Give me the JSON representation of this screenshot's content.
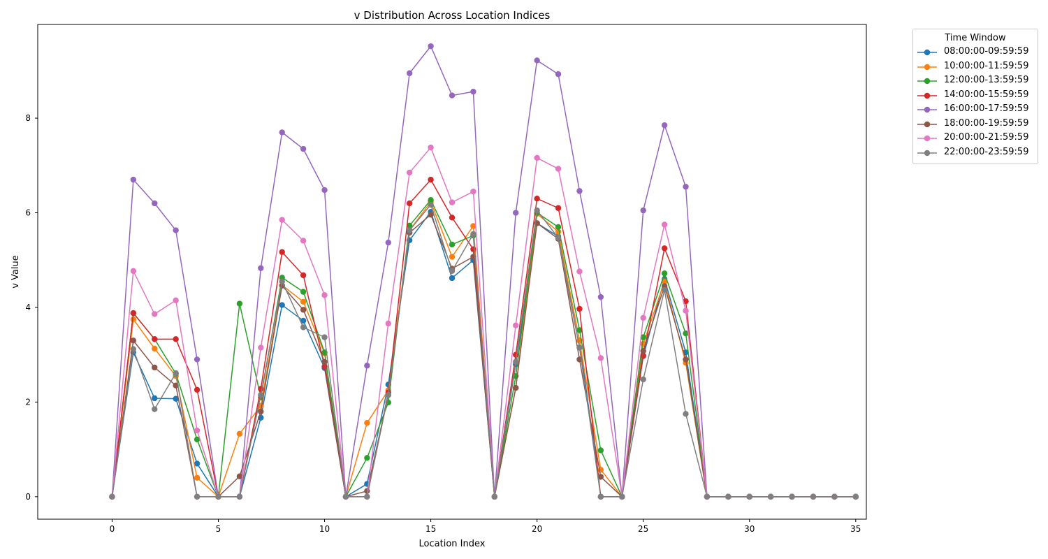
{
  "chart_data": {
    "type": "line",
    "title": "v Distribution Across Location Indices",
    "xlabel": "Location Index",
    "ylabel": "v Value",
    "xlim": [
      -3.5,
      35.5
    ],
    "ylim": [
      -0.475,
      9.98
    ],
    "xticks": [
      0,
      5,
      10,
      15,
      20,
      25,
      30,
      35
    ],
    "yticks": [
      0,
      2,
      4,
      6,
      8
    ],
    "grid": false,
    "legend": {
      "title": "Time Window",
      "placement": "outside-top-right"
    },
    "x": [
      0,
      1,
      2,
      3,
      4,
      5,
      6,
      7,
      8,
      9,
      10,
      11,
      12,
      13,
      14,
      15,
      16,
      17,
      18,
      19,
      20,
      21,
      22,
      23,
      24,
      25,
      26,
      27,
      28,
      29,
      30,
      31,
      32,
      33,
      34,
      35
    ],
    "series": [
      {
        "name": "08:00:00-09:59:59",
        "color": "#1f77b4",
        "values": [
          0,
          3.05,
          2.08,
          2.07,
          0.7,
          0,
          0,
          1.67,
          4.05,
          3.72,
          2.72,
          0,
          0.27,
          2.37,
          5.42,
          6.02,
          4.62,
          5.0,
          0,
          2.8,
          5.78,
          5.5,
          3.3,
          0,
          0,
          2.97,
          4.6,
          3.05,
          0,
          0,
          0,
          0,
          0,
          0,
          0,
          0
        ]
      },
      {
        "name": "10:00:00-11:59:59",
        "color": "#ff7f0e",
        "values": [
          0,
          3.75,
          3.13,
          2.55,
          0.4,
          0,
          1.33,
          1.92,
          4.47,
          4.12,
          3.03,
          0,
          1.56,
          2.25,
          5.63,
          6.23,
          5.07,
          5.72,
          0,
          2.3,
          5.98,
          5.6,
          3.3,
          0.57,
          0,
          3.23,
          4.55,
          2.83,
          0,
          0,
          0,
          0,
          0,
          0,
          0,
          0
        ]
      },
      {
        "name": "12:00:00-13:59:59",
        "color": "#2ca02c",
        "values": [
          0,
          3.88,
          3.33,
          2.6,
          1.21,
          0,
          4.08,
          2.1,
          4.63,
          4.33,
          3.05,
          0,
          0.82,
          1.99,
          5.73,
          6.27,
          5.33,
          5.52,
          0,
          2.55,
          6.0,
          5.7,
          3.52,
          0.98,
          0,
          3.37,
          4.72,
          3.45,
          0,
          0,
          0,
          0,
          0,
          0,
          0,
          0
        ]
      },
      {
        "name": "14:00:00-15:59:59",
        "color": "#d62728",
        "values": [
          0,
          3.88,
          3.33,
          3.33,
          2.26,
          0,
          0,
          2.28,
          5.17,
          4.68,
          2.75,
          0,
          0,
          2.2,
          6.2,
          6.7,
          5.9,
          5.23,
          0,
          3.0,
          6.3,
          6.1,
          3.97,
          0,
          0,
          2.98,
          5.25,
          4.13,
          0,
          0,
          0,
          0,
          0,
          0,
          0,
          0
        ]
      },
      {
        "name": "16:00:00-17:59:59",
        "color": "#9467bd",
        "values": [
          0,
          6.7,
          6.2,
          5.63,
          2.9,
          0,
          0,
          4.83,
          7.7,
          7.35,
          6.48,
          0,
          2.77,
          5.37,
          8.95,
          9.52,
          8.48,
          8.56,
          0,
          6.0,
          9.22,
          8.93,
          6.46,
          4.22,
          0,
          6.05,
          7.85,
          6.55,
          0,
          0,
          0,
          0,
          0,
          0,
          0,
          0
        ]
      },
      {
        "name": "18:00:00-19:59:59",
        "color": "#8c564b",
        "values": [
          0,
          3.3,
          2.73,
          2.35,
          0,
          0,
          0.43,
          1.8,
          4.46,
          3.95,
          2.85,
          0,
          0.12,
          2.15,
          5.58,
          5.96,
          4.82,
          5.07,
          0,
          2.3,
          5.78,
          5.45,
          2.9,
          0.42,
          0,
          3.08,
          4.45,
          2.9,
          0,
          0,
          0,
          0,
          0,
          0,
          0,
          0
        ]
      },
      {
        "name": "20:00:00-21:59:59",
        "color": "#e377c2",
        "values": [
          0,
          4.77,
          3.86,
          4.15,
          1.4,
          0,
          0,
          3.15,
          5.85,
          5.41,
          4.26,
          0,
          0,
          3.66,
          6.85,
          7.38,
          6.22,
          6.45,
          0,
          3.62,
          7.16,
          6.93,
          4.76,
          2.93,
          0,
          3.78,
          5.75,
          3.93,
          0,
          0,
          0,
          0,
          0,
          0,
          0,
          0
        ]
      },
      {
        "name": "22:00:00-23:59:59",
        "color": "#7f7f7f",
        "values": [
          0,
          3.12,
          1.85,
          2.61,
          0,
          0,
          0,
          2.15,
          4.55,
          3.58,
          3.37,
          0,
          0,
          2.15,
          5.63,
          6.17,
          4.77,
          5.55,
          0,
          2.85,
          6.05,
          5.47,
          3.15,
          0,
          0,
          2.48,
          4.37,
          1.75,
          0,
          0,
          0,
          0,
          0,
          0,
          0,
          0
        ]
      }
    ]
  }
}
